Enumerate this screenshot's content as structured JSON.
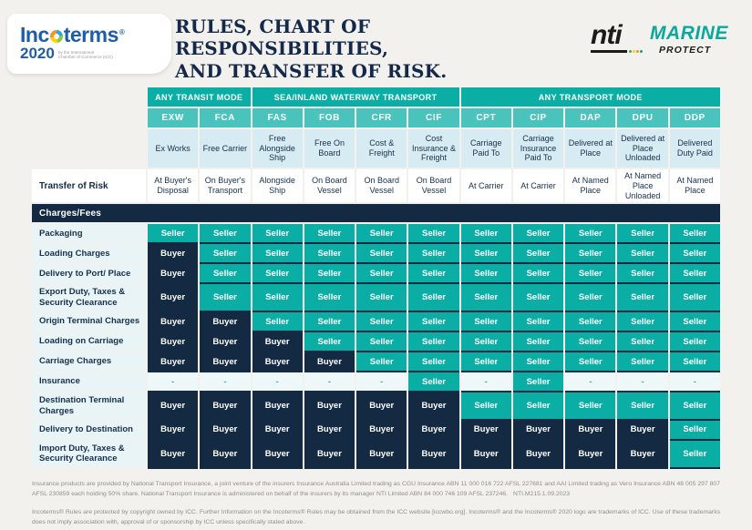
{
  "header": {
    "incoterms_logo": {
      "brand_prefix": "Inc",
      "brand_suffix": "terms",
      "reg_mark": "®",
      "year": "2020",
      "tagline_line1": "by the International",
      "tagline_line2": "Chamber of Commerce (ICC)"
    },
    "title_line1": "RULES, CHART OF RESPONSIBILITIES,",
    "title_line2": "AND TRANSFER OF RISK.",
    "nti_logo": {
      "name": "nti",
      "product": "MARINE",
      "sub": "PROTECT"
    }
  },
  "table": {
    "groups": [
      {
        "label": "ANY TRANSIT MODE",
        "span": 2
      },
      {
        "label": "SEA/INLAND WATERWAY TRANSPORT",
        "span": 4
      },
      {
        "label": "ANY TRANSPORT MODE",
        "span": 5
      }
    ],
    "codes": [
      "EXW",
      "FCA",
      "FAS",
      "FOB",
      "CFR",
      "CIF",
      "CPT",
      "CIP",
      "DAP",
      "DPU",
      "DDP"
    ],
    "terms": [
      "Ex Works",
      "Free Carrier",
      "Free Alongside Ship",
      "Free On Board",
      "Cost & Freight",
      "Cost Insurance & Freight",
      "Carriage Paid To",
      "Carriage Insurance Paid To",
      "Delivered at Place",
      "Delivered at Place Unloaded",
      "Delivered Duty Paid"
    ],
    "risk_label": "Transfer of Risk",
    "risk": [
      "At Buyer's Disposal",
      "On Buyer's Transport",
      "Alongside Ship",
      "On Board Vessel",
      "On Board Vessel",
      "On Board Vessel",
      "At Carrier",
      "At Carrier",
      "At Named Place",
      "At Named Place Unloaded",
      "At Named Place"
    ],
    "section_label": "Charges/Fees",
    "rows": [
      {
        "label": "Packaging",
        "values": [
          "Seller",
          "Seller",
          "Seller",
          "Seller",
          "Seller",
          "Seller",
          "Seller",
          "Seller",
          "Seller",
          "Seller",
          "Seller"
        ]
      },
      {
        "label": "Loading Charges",
        "values": [
          "Buyer",
          "Seller",
          "Seller",
          "Seller",
          "Seller",
          "Seller",
          "Seller",
          "Seller",
          "Seller",
          "Seller",
          "Seller"
        ]
      },
      {
        "label": "Delivery to Port/ Place",
        "values": [
          "Buyer",
          "Seller",
          "Seller",
          "Seller",
          "Seller",
          "Seller",
          "Seller",
          "Seller",
          "Seller",
          "Seller",
          "Seller"
        ]
      },
      {
        "label": "Export Duty, Taxes & Security Clearance",
        "values": [
          "Buyer",
          "Seller",
          "Seller",
          "Seller",
          "Seller",
          "Seller",
          "Seller",
          "Seller",
          "Seller",
          "Seller",
          "Seller"
        ]
      },
      {
        "label": "Origin Terminal Charges",
        "values": [
          "Buyer",
          "Buyer",
          "Seller",
          "Seller",
          "Seller",
          "Seller",
          "Seller",
          "Seller",
          "Seller",
          "Seller",
          "Seller"
        ]
      },
      {
        "label": "Loading on Carriage",
        "values": [
          "Buyer",
          "Buyer",
          "Buyer",
          "Seller",
          "Seller",
          "Seller",
          "Seller",
          "Seller",
          "Seller",
          "Seller",
          "Seller"
        ]
      },
      {
        "label": "Carriage Charges",
        "values": [
          "Buyer",
          "Buyer",
          "Buyer",
          "Buyer",
          "Seller",
          "Seller",
          "Seller",
          "Seller",
          "Seller",
          "Seller",
          "Seller"
        ]
      },
      {
        "label": "Insurance",
        "values": [
          "-",
          "-",
          "-",
          "-",
          "-",
          "Seller",
          "-",
          "Seller",
          "-",
          "-",
          "-"
        ]
      },
      {
        "label": "Destination Terminal Charges",
        "values": [
          "Buyer",
          "Buyer",
          "Buyer",
          "Buyer",
          "Buyer",
          "Buyer",
          "Seller",
          "Seller",
          "Seller",
          "Seller",
          "Seller"
        ]
      },
      {
        "label": "Delivery to Destination",
        "values": [
          "Buyer",
          "Buyer",
          "Buyer",
          "Buyer",
          "Buyer",
          "Buyer",
          "Buyer",
          "Buyer",
          "Buyer",
          "Buyer",
          "Seller"
        ]
      },
      {
        "label": "Import Duty, Taxes & Security Clearance",
        "values": [
          "Buyer",
          "Buyer",
          "Buyer",
          "Buyer",
          "Buyer",
          "Buyer",
          "Buyer",
          "Buyer",
          "Buyer",
          "Buyer",
          "Seller"
        ]
      }
    ]
  },
  "footer": {
    "footnote_insurance": "Insurance products are provided by National Transport Insurance, a joint venture of the insurers Insurance Australia Limited trading as CGU Insurance ABN 11 000 016 722 AFSL 227681 and AAI Limited trading as Vero Insurance ABN 48 005 297 807 AFSL 230859 each holding 50% share. National Transport Insurance is administered on behalf of the insurers by its manager NTI Limited ABN 84 000 746 109 AFSL 237246.",
    "doc_code": "NTI.M215.1.09.2023",
    "footnote_icc": "Incoterms® Rules are protected by copyright owned by ICC. Further Information on the Incoterms® Rules may be obtained from the ICC website [iccwbo.org]. Incoterms® and the Incoterms® 2020 logo are trademarks of ICC. Use of these trademarks does not imply association with, approval of or sponsorship by ICC unless specifically stated above."
  },
  "colors": {
    "teal": "#0baea5",
    "teal_light": "#49c3bb",
    "navy": "#142a42",
    "term_row_bg": "#d6ebf2",
    "label_col_bg": "#e9f4f6",
    "dash_cell_bg": "#eff8f9",
    "incoterms_blue": "#1e5da8",
    "page_bg": "#f2f1ee",
    "nti_dot_colors": [
      "#3fae49",
      "#ffd200",
      "#f7941d",
      "#00a99d"
    ]
  }
}
